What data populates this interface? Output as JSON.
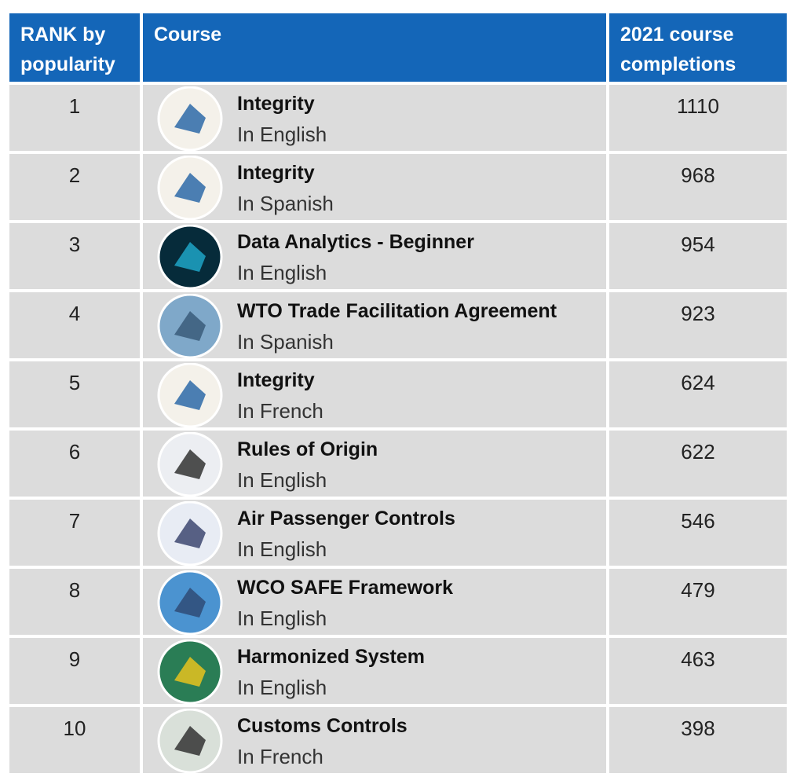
{
  "table": {
    "header": [
      "RANK by popularity",
      "Course",
      "2021 course completions"
    ],
    "rows": [
      {
        "rank": 1,
        "course": "Integrity",
        "language": "In English",
        "completions": 1110
      },
      {
        "rank": 2,
        "course": "Integrity",
        "language": "In Spanish",
        "completions": 968
      },
      {
        "rank": 3,
        "course": "Data Analytics - Beginner",
        "language": "In English",
        "completions": 954
      },
      {
        "rank": 4,
        "course": "WTO Trade Facilitation Agreement",
        "language": "In Spanish",
        "completions": 923
      },
      {
        "rank": 5,
        "course": "Integrity",
        "language": "In French",
        "completions": 624
      },
      {
        "rank": 6,
        "course": "Rules of Origin",
        "language": "In English",
        "completions": 622
      },
      {
        "rank": 7,
        "course": "Air Passenger Controls",
        "language": "In English",
        "completions": 546
      },
      {
        "rank": 8,
        "course": "WCO SAFE Framework",
        "language": "In English",
        "completions": 479
      },
      {
        "rank": 9,
        "course": "Harmonized System",
        "language": "In English",
        "completions": 463
      },
      {
        "rank": 10,
        "course": "Customs Controls",
        "language": "In French",
        "completions": 398
      }
    ]
  }
}
